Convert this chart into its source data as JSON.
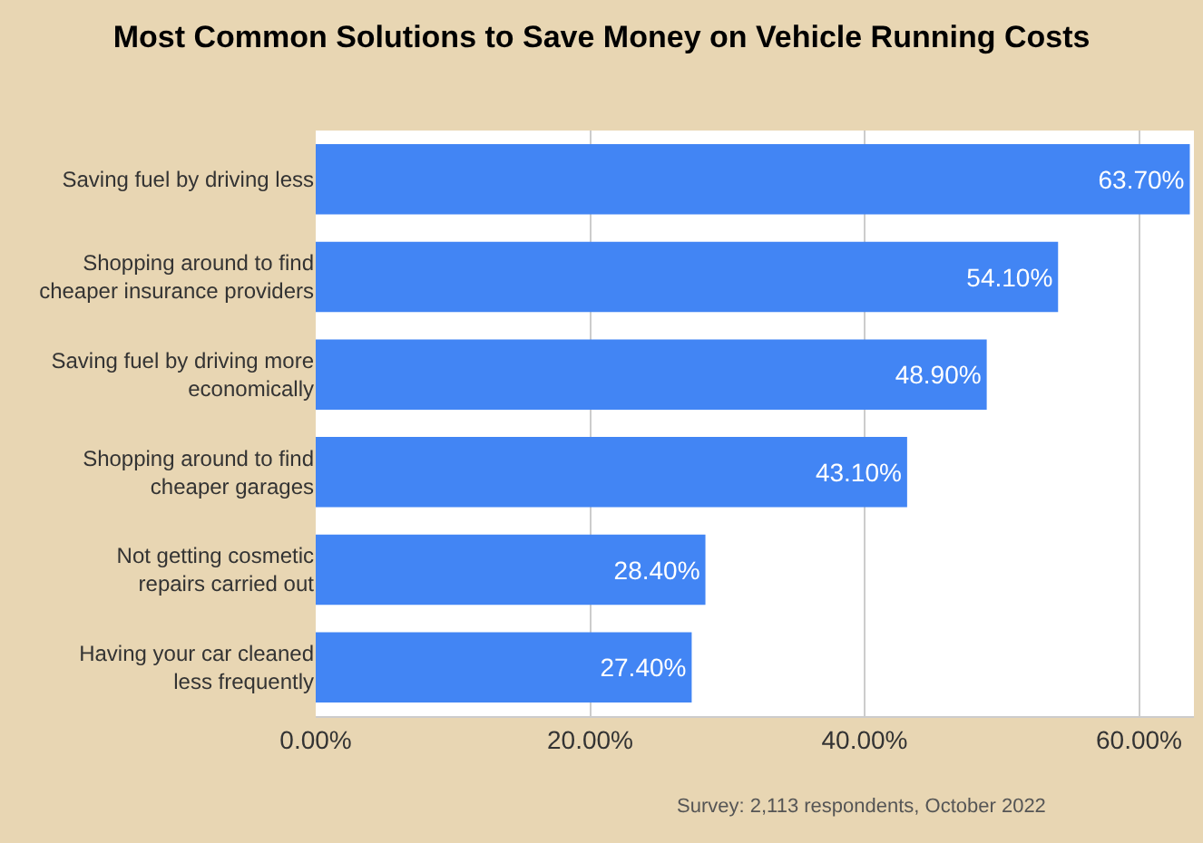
{
  "chart_data": {
    "type": "bar",
    "orientation": "horizontal",
    "title": "Most Common Solutions to Save Money on Vehicle Running Costs",
    "categories": [
      "Saving fuel by driving less",
      "Shopping around to find cheaper insurance providers",
      "Saving fuel by driving more economically",
      "Shopping around to find cheaper garages",
      "Not getting cosmetic repairs carried out",
      "Having your car cleaned less frequently"
    ],
    "values": [
      63.7,
      54.1,
      48.9,
      43.1,
      28.4,
      27.4
    ],
    "value_labels": [
      "63.70%",
      "54.10%",
      "48.90%",
      "43.10%",
      "28.40%",
      "27.40%"
    ],
    "color": "#4285f4",
    "xlim": [
      0,
      64
    ],
    "xticks": [
      {
        "value": 0,
        "label": "0.00%"
      },
      {
        "value": 20,
        "label": "20.00%"
      },
      {
        "value": 40,
        "label": "40.00%"
      },
      {
        "value": 60,
        "label": "60.00%"
      }
    ],
    "grid": "x",
    "annotations": [
      "Survey: 2,113 respondents, October 2022"
    ]
  }
}
